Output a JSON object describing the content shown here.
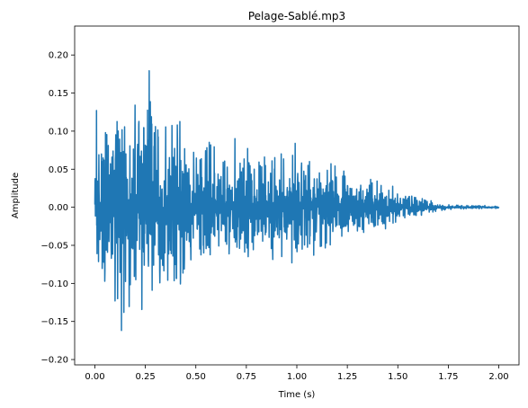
{
  "chart_data": {
    "type": "line",
    "title": "Pelage-Sablé.mp3",
    "xlabel": "Time (s)",
    "ylabel": "Amplitude",
    "xlim": [
      -0.1,
      2.1
    ],
    "ylim": [
      -0.207,
      0.238
    ],
    "xticks": [
      0.0,
      0.25,
      0.5,
      0.75,
      1.0,
      1.25,
      1.5,
      1.75,
      2.0
    ],
    "xtick_labels": [
      "0.00",
      "0.25",
      "0.50",
      "0.75",
      "1.00",
      "1.25",
      "1.50",
      "1.75",
      "2.00"
    ],
    "yticks": [
      -0.2,
      -0.15,
      -0.1,
      -0.05,
      0.0,
      0.05,
      0.1,
      0.15,
      0.2
    ],
    "ytick_labels": [
      "−0.20",
      "−0.15",
      "−0.10",
      "−0.05",
      "0.00",
      "0.05",
      "0.10",
      "0.15",
      "0.20"
    ],
    "grid": false,
    "legend": "none",
    "series": [
      {
        "name": "waveform",
        "color": "#1f77b4",
        "x": [
          0.0,
          2.0
        ],
        "envelope": {
          "t": [
            0.0,
            0.01,
            0.03,
            0.05,
            0.08,
            0.12,
            0.16,
            0.2,
            0.22,
            0.25,
            0.27,
            0.3,
            0.35,
            0.4,
            0.45,
            0.46,
            0.5,
            0.6,
            0.7,
            0.8,
            0.9,
            1.0,
            1.1,
            1.15,
            1.25,
            1.35,
            1.45,
            1.55,
            1.65,
            1.7,
            1.8,
            2.0
          ],
          "upper": [
            0.05,
            0.18,
            0.17,
            0.16,
            0.15,
            0.17,
            0.14,
            0.16,
            0.19,
            0.18,
            0.21,
            0.14,
            0.15,
            0.13,
            0.14,
            0.1,
            0.1,
            0.11,
            0.1,
            0.09,
            0.09,
            0.09,
            0.08,
            0.07,
            0.05,
            0.045,
            0.035,
            0.02,
            0.012,
            0.005,
            0.003,
            0.002
          ],
          "lower": [
            -0.03,
            -0.18,
            -0.17,
            -0.15,
            -0.14,
            -0.16,
            -0.17,
            -0.18,
            -0.16,
            -0.19,
            -0.17,
            -0.16,
            -0.14,
            -0.13,
            -0.12,
            -0.09,
            -0.09,
            -0.1,
            -0.09,
            -0.08,
            -0.08,
            -0.075,
            -0.07,
            -0.06,
            -0.045,
            -0.04,
            -0.03,
            -0.018,
            -0.01,
            -0.005,
            -0.003,
            -0.002
          ]
        },
        "sample_count": 2200
      }
    ]
  }
}
